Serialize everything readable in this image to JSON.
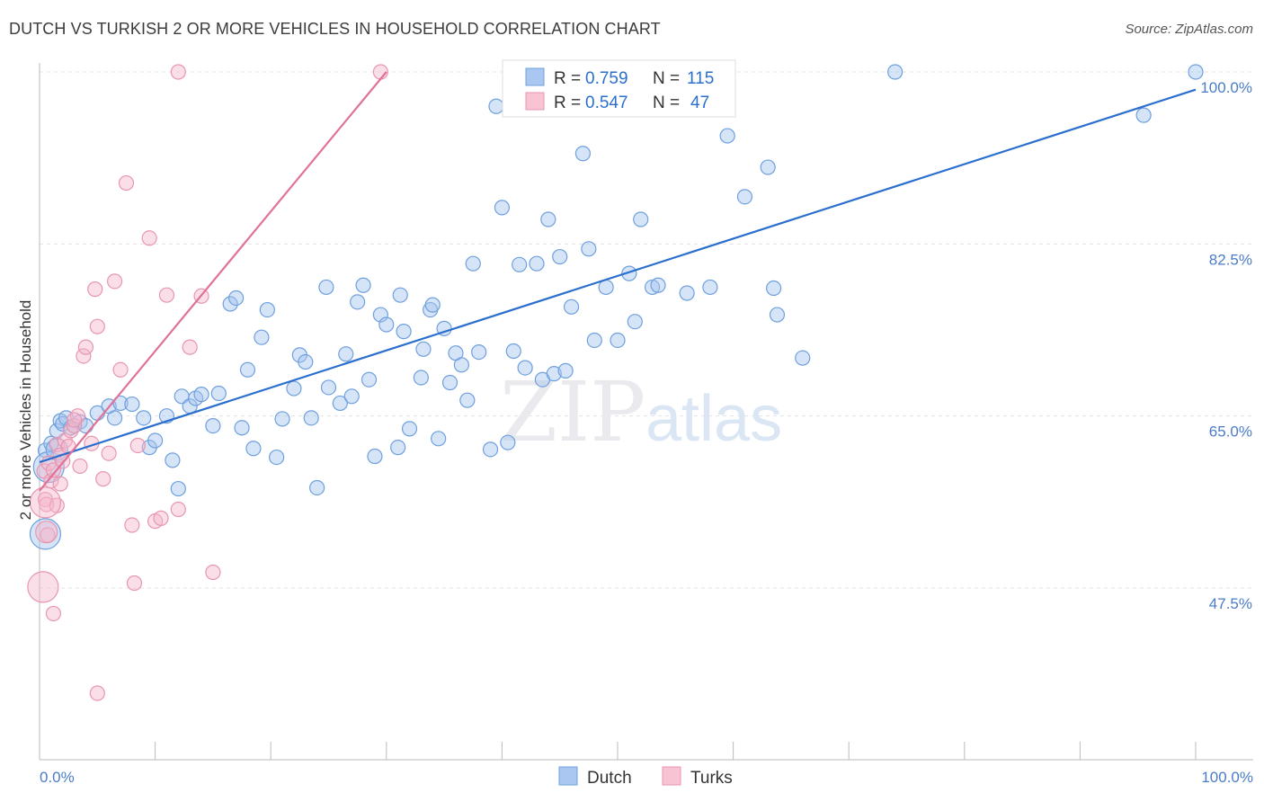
{
  "header": {
    "title": "DUTCH VS TURKISH 2 OR MORE VEHICLES IN HOUSEHOLD CORRELATION CHART",
    "source": "Source: ZipAtlas.com"
  },
  "watermark": {
    "zip": "ZIP",
    "atlas": "atlas"
  },
  "colors": {
    "dutch": "#6fa0de",
    "dutch_fill": "rgba(163,196,238,0.45)",
    "dutch_line": "#2b6fce",
    "turks": "#e896b0",
    "turks_fill": "rgba(245,185,205,0.45)",
    "turks_line": "#e07298",
    "tick_text": "#4a7cc8"
  },
  "stats_legend": {
    "rows": [
      {
        "r_label": "R =",
        "r_value": "0.759",
        "n_label": "N =",
        "n_value": "115",
        "series": "dutch"
      },
      {
        "r_label": "R =",
        "r_value": "0.547",
        "n_label": "N =",
        "n_value": "47",
        "series": "turks"
      }
    ]
  },
  "bottom_legend": [
    {
      "label": "Dutch",
      "series": "dutch"
    },
    {
      "label": "Turks",
      "series": "turks"
    }
  ],
  "chart_data": {
    "type": "scatter",
    "title": "DUTCH VS TURKISH 2 OR MORE VEHICLES IN HOUSEHOLD CORRELATION CHART",
    "xlabel": "",
    "ylabel": "2 or more Vehicles in Household",
    "xlim": [
      0,
      100
    ],
    "ylim": [
      30,
      102
    ],
    "x_tick_labels": [
      "0.0%",
      "100.0%"
    ],
    "y_ticks": [
      47.5,
      65.0,
      82.5,
      100.0
    ],
    "y_tick_labels": [
      "47.5%",
      "65.0%",
      "82.5%",
      "100.0%"
    ],
    "grid": true,
    "legend_position": "top-center",
    "series": [
      {
        "name": "Dutch",
        "r": 0.759,
        "n": 115,
        "trend": {
          "x": [
            0,
            100
          ],
          "y": [
            60.3,
            98.2
          ]
        },
        "points": [
          [
            0.5,
            61.5
          ],
          [
            1,
            62.2
          ],
          [
            1.5,
            63.5
          ],
          [
            1.8,
            64.5
          ],
          [
            2,
            64.2
          ],
          [
            2.3,
            64.8
          ],
          [
            2.7,
            63.8
          ],
          [
            3,
            64
          ],
          [
            3.5,
            64.4
          ],
          [
            4,
            64
          ],
          [
            5,
            65.3
          ],
          [
            6,
            66
          ],
          [
            6.5,
            64.8
          ],
          [
            7,
            66.3
          ],
          [
            8,
            66.2
          ],
          [
            9,
            64.8
          ],
          [
            9.5,
            61.8
          ],
          [
            10,
            62.5
          ],
          [
            11,
            65
          ],
          [
            11.5,
            60.5
          ],
          [
            12,
            57.6
          ],
          [
            12.3,
            67
          ],
          [
            13,
            66
          ],
          [
            13.5,
            66.8
          ],
          [
            14,
            67.2
          ],
          [
            15,
            64
          ],
          [
            15.5,
            67.3
          ],
          [
            16.5,
            76.4
          ],
          [
            17,
            77
          ],
          [
            17.5,
            63.8
          ],
          [
            18,
            69.7
          ],
          [
            18.5,
            61.7
          ],
          [
            19.2,
            73
          ],
          [
            19.7,
            75.8
          ],
          [
            20.5,
            60.8
          ],
          [
            21,
            64.7
          ],
          [
            22,
            67.8
          ],
          [
            22.5,
            71.2
          ],
          [
            23,
            70.5
          ],
          [
            23.5,
            64.8
          ],
          [
            24,
            57.7
          ],
          [
            24.8,
            78.1
          ],
          [
            25,
            67.9
          ],
          [
            26,
            66.3
          ],
          [
            26.5,
            71.3
          ],
          [
            27,
            67
          ],
          [
            27.5,
            76.6
          ],
          [
            28,
            78.3
          ],
          [
            28.5,
            68.7
          ],
          [
            29,
            60.9
          ],
          [
            29.5,
            75.3
          ],
          [
            30,
            74.3
          ],
          [
            31,
            61.8
          ],
          [
            31.5,
            73.6
          ],
          [
            31.2,
            77.3
          ],
          [
            32,
            63.7
          ],
          [
            33,
            68.9
          ],
          [
            33.2,
            71.8
          ],
          [
            33.8,
            75.8
          ],
          [
            34,
            76.3
          ],
          [
            34.5,
            62.7
          ],
          [
            35,
            73.9
          ],
          [
            35.5,
            68.4
          ],
          [
            36,
            71.4
          ],
          [
            36.5,
            70.2
          ],
          [
            37,
            66.6
          ],
          [
            37.5,
            80.5
          ],
          [
            38,
            71.5
          ],
          [
            39,
            61.6
          ],
          [
            39.5,
            96.5
          ],
          [
            40,
            86.2
          ],
          [
            40.5,
            62.3
          ],
          [
            41,
            71.6
          ],
          [
            41.5,
            80.4
          ],
          [
            42,
            69.9
          ],
          [
            43,
            80.5
          ],
          [
            43.5,
            68.7
          ],
          [
            44,
            85
          ],
          [
            44.5,
            69.3
          ],
          [
            45,
            81.2
          ],
          [
            45.5,
            69.6
          ],
          [
            46,
            76.1
          ],
          [
            47,
            91.7
          ],
          [
            47.5,
            82
          ],
          [
            48,
            72.7
          ],
          [
            49,
            78.1
          ],
          [
            50,
            72.7
          ],
          [
            51,
            79.5
          ],
          [
            51.5,
            74.6
          ],
          [
            52,
            85
          ],
          [
            53,
            78.1
          ],
          [
            53.5,
            78.3
          ],
          [
            56,
            77.5
          ],
          [
            58,
            78.1
          ],
          [
            59.5,
            93.5
          ],
          [
            61,
            87.3
          ],
          [
            63,
            90.3
          ],
          [
            63.5,
            78
          ],
          [
            63.8,
            75.3
          ],
          [
            66,
            70.9
          ],
          [
            74,
            100
          ],
          [
            95.5,
            95.6
          ],
          [
            100,
            100
          ]
        ],
        "sizes": {
          "large": [
            [
              0.5,
              53
            ],
            [
              0.8,
              59.8
            ]
          ],
          "medium": [
            [
              1.5,
              61.6
            ]
          ]
        }
      },
      {
        "name": "Turks",
        "r": 0.547,
        "n": 47,
        "trend": {
          "x": [
            0,
            30
          ],
          "y": [
            57.4,
            100
          ]
        },
        "points": [
          [
            0.4,
            59.4
          ],
          [
            0.5,
            56.5
          ],
          [
            0.6,
            56
          ],
          [
            0.7,
            52.9
          ],
          [
            0.8,
            60.2
          ],
          [
            1,
            58.4
          ],
          [
            1.2,
            59.5
          ],
          [
            1.5,
            62.1
          ],
          [
            1.8,
            61
          ],
          [
            2,
            60.4
          ],
          [
            2.2,
            62.5
          ],
          [
            2.5,
            61.9
          ],
          [
            2.7,
            63.5
          ],
          [
            3,
            64
          ],
          [
            3.3,
            65
          ],
          [
            3,
            64.6
          ],
          [
            3.5,
            59.9
          ],
          [
            3.8,
            71.1
          ],
          [
            4,
            72
          ],
          [
            4.5,
            62.2
          ],
          [
            4.8,
            77.9
          ],
          [
            5,
            74.1
          ],
          [
            5.5,
            58.6
          ],
          [
            6,
            61.2
          ],
          [
            6.5,
            78.7
          ],
          [
            7,
            69.7
          ],
          [
            7.5,
            88.7
          ],
          [
            8,
            53.9
          ],
          [
            8.2,
            48
          ],
          [
            8.5,
            62
          ],
          [
            9.5,
            83.1
          ],
          [
            10,
            54.3
          ],
          [
            10.5,
            54.6
          ],
          [
            11,
            77.3
          ],
          [
            12,
            55.5
          ],
          [
            13,
            72
          ],
          [
            14,
            77.2
          ],
          [
            15,
            49.1
          ],
          [
            12,
            100
          ],
          [
            29.5,
            100
          ],
          [
            1.2,
            44.9
          ],
          [
            5,
            36.8
          ],
          [
            1.5,
            55.9
          ],
          [
            1.8,
            58.1
          ]
        ],
        "sizes": {
          "large": [
            [
              0.3,
              47.6
            ],
            [
              0.5,
              56.2
            ]
          ],
          "medium": [
            [
              0.6,
              53.2
            ]
          ]
        }
      }
    ]
  }
}
